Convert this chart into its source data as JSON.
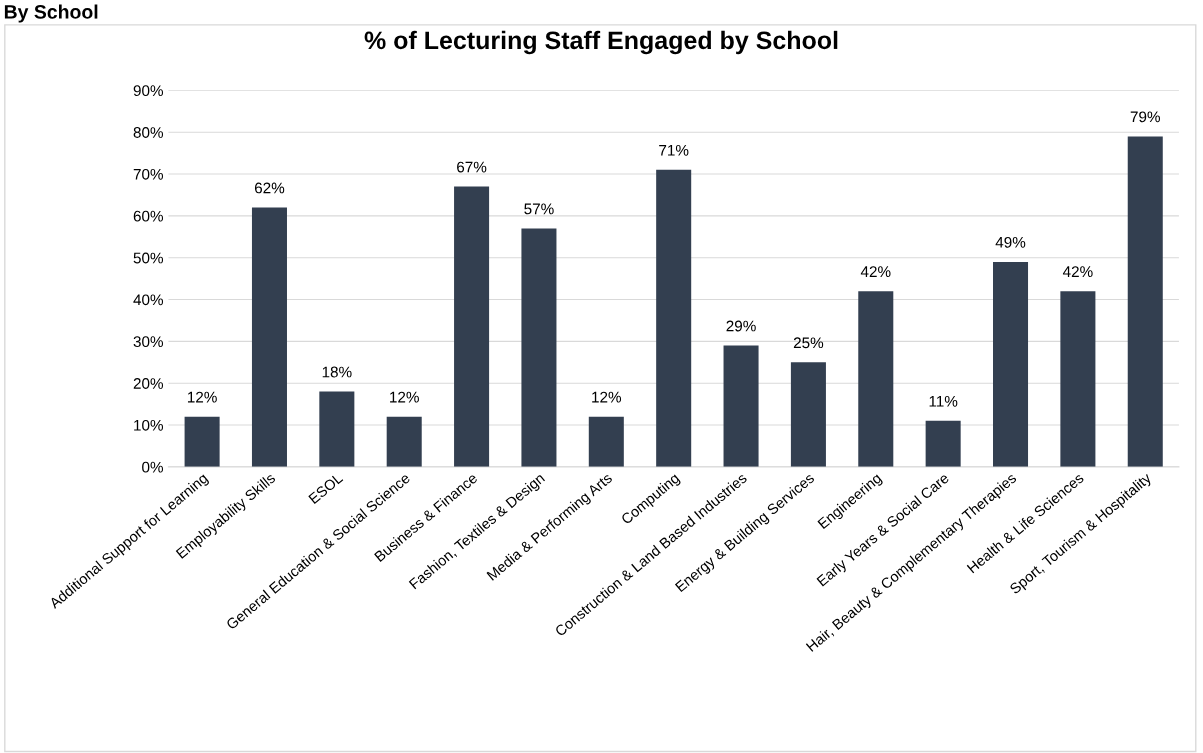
{
  "chart_data": {
    "type": "bar",
    "title": "% of Lecturing Staff Engaged by School",
    "annotations": [
      "By School"
    ],
    "categories": [
      "Additional Support for Learning",
      "Employability Skills",
      "ESOL",
      "General Education & Social Science",
      "Business & Finance",
      "Fashion, Textiles & Design",
      "Media & Performing Arts",
      "Computing",
      "Construction & Land Based Industries",
      "Energy & Building Services",
      "Engineering",
      "Early Years & Social Care",
      "Hair, Beauty & Complementary Therapies",
      "Health & Life Sciences",
      "Sport, Tourism & Hospitality"
    ],
    "values": [
      12,
      62,
      18,
      12,
      67,
      57,
      12,
      71,
      29,
      25,
      42,
      11,
      49,
      42,
      79
    ],
    "value_labels": [
      "12%",
      "62%",
      "18%",
      "12%",
      "67%",
      "57%",
      "12%",
      "71%",
      "29%",
      "25%",
      "42%",
      "11%",
      "49%",
      "42%",
      "79%"
    ],
    "color": "#333f50",
    "ylim": [
      0,
      90
    ],
    "yticks": [
      {
        "value": 0,
        "label": "0%"
      },
      {
        "value": 10,
        "label": "10%"
      },
      {
        "value": 20,
        "label": "20%"
      },
      {
        "value": 30,
        "label": "30%"
      },
      {
        "value": 40,
        "label": "40%"
      },
      {
        "value": 50,
        "label": "50%"
      },
      {
        "value": 60,
        "label": "60%"
      },
      {
        "value": 70,
        "label": "70%"
      },
      {
        "value": 80,
        "label": "80%"
      },
      {
        "value": 90,
        "label": "90%"
      }
    ],
    "grid": "y"
  }
}
